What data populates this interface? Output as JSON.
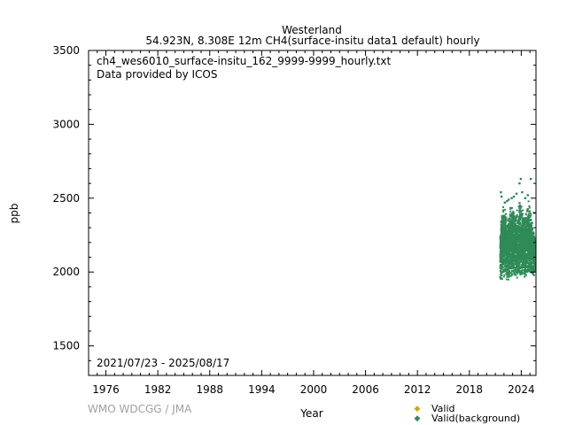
{
  "header": {
    "station": "Westerland",
    "subtitle": "54.923N, 8.308E 12m    CH4(surface-insitu data1 default) hourly"
  },
  "annotations": {
    "filename": "ch4_wes6010_surface-insitu_162_9999-9999_hourly.txt",
    "provider": "Data provided by ICOS",
    "date_range": "2021/07/23 - 2025/08/17"
  },
  "footer": {
    "credit": "WMO WDCGG / JMA"
  },
  "chart_data": {
    "type": "scatter",
    "xlabel": "Year",
    "ylabel": "ppb",
    "xlim": [
      1974.0,
      2025.7
    ],
    "ylim": [
      1300,
      3500
    ],
    "x_ticks": [
      1976,
      1982,
      1988,
      1994,
      2000,
      2006,
      2012,
      2018,
      2024
    ],
    "y_ticks": [
      1500,
      2000,
      2500,
      3000,
      3500
    ],
    "grid": false,
    "legend_position": "bottom-right",
    "series": [
      {
        "name": "Valid",
        "color": "#ccaa00",
        "values": []
      },
      {
        "name": "Valid(background)",
        "color": "#2e8b57",
        "envelope": [
          {
            "x": 2021.56,
            "low": 1950,
            "high": 2300
          },
          {
            "x": 2021.7,
            "low": 1945,
            "high": 2420
          },
          {
            "x": 2021.85,
            "low": 1940,
            "high": 2480
          },
          {
            "x": 2022.0,
            "low": 1960,
            "high": 2450
          },
          {
            "x": 2022.2,
            "low": 1950,
            "high": 2420
          },
          {
            "x": 2022.4,
            "low": 1935,
            "high": 2360
          },
          {
            "x": 2022.6,
            "low": 1940,
            "high": 2400
          },
          {
            "x": 2022.8,
            "low": 1955,
            "high": 2470
          },
          {
            "x": 2023.0,
            "low": 1965,
            "high": 2480
          },
          {
            "x": 2023.2,
            "low": 1960,
            "high": 2440
          },
          {
            "x": 2023.4,
            "low": 1950,
            "high": 2400
          },
          {
            "x": 2023.6,
            "low": 1955,
            "high": 2450
          },
          {
            "x": 2023.8,
            "low": 1960,
            "high": 2500
          },
          {
            "x": 2024.0,
            "low": 1975,
            "high": 2470
          },
          {
            "x": 2024.2,
            "low": 1970,
            "high": 2430
          },
          {
            "x": 2024.4,
            "low": 1965,
            "high": 2380
          },
          {
            "x": 2024.6,
            "low": 1970,
            "high": 2440
          },
          {
            "x": 2024.8,
            "low": 1975,
            "high": 2500
          },
          {
            "x": 2025.0,
            "low": 1980,
            "high": 2460
          },
          {
            "x": 2025.2,
            "low": 1975,
            "high": 2380
          },
          {
            "x": 2025.4,
            "low": 1970,
            "high": 2300
          },
          {
            "x": 2025.62,
            "low": 1980,
            "high": 2250
          }
        ],
        "outliers": [
          {
            "x": 2021.65,
            "y": 2540
          },
          {
            "x": 2021.72,
            "y": 2510
          },
          {
            "x": 2022.1,
            "y": 2470
          },
          {
            "x": 2022.35,
            "y": 2480
          },
          {
            "x": 2022.55,
            "y": 2490
          },
          {
            "x": 2022.9,
            "y": 2500
          },
          {
            "x": 2023.15,
            "y": 2510
          },
          {
            "x": 2023.45,
            "y": 2530
          },
          {
            "x": 2023.8,
            "y": 2600
          },
          {
            "x": 2023.95,
            "y": 2630
          },
          {
            "x": 2024.1,
            "y": 2540
          },
          {
            "x": 2024.45,
            "y": 2500
          },
          {
            "x": 2024.75,
            "y": 2520
          },
          {
            "x": 2025.1,
            "y": 2630
          },
          {
            "x": 2025.45,
            "y": 2400
          }
        ]
      }
    ]
  }
}
